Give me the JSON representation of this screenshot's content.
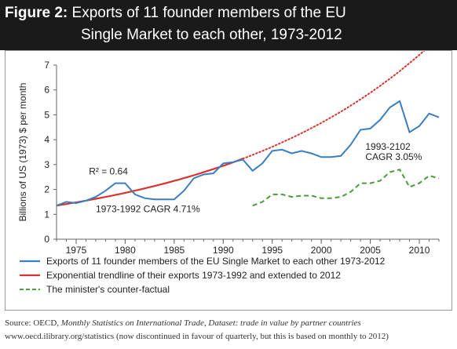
{
  "title": {
    "label": "Figure 2:",
    "line1": "Exports of 11 founder members of the EU",
    "line2": "Single Market to each other, 1973-2012"
  },
  "source": {
    "line1_prefix": "Source: OECD, ",
    "line1_italic": "Monthly Statistics on International Trade, Dataset: trade in value by partner countries",
    "line2": "www.oecd.ilibrary.org/statistics (now discontinued in favour of quarterly, but this is based on monthly to 2012)"
  },
  "chart_data": {
    "type": "line",
    "ylabel": "Billions of US (1973) $ per month",
    "xlabel": "",
    "xlim": [
      1973,
      2012
    ],
    "ylim": [
      0,
      7
    ],
    "x_ticks": [
      1975,
      1980,
      1985,
      1990,
      1995,
      2000,
      2005,
      2010
    ],
    "y_ticks": [
      0,
      1,
      2,
      3,
      4,
      5,
      6,
      7
    ],
    "grid": false,
    "legend_position": "bottom",
    "series": [
      {
        "name": "Exports of 11 founder members of the EU Single Market to each other 1973-2012",
        "color": "#3a7ec1",
        "style": "solid",
        "x": [
          1973,
          1974,
          1975,
          1976,
          1977,
          1978,
          1979,
          1980,
          1981,
          1982,
          1983,
          1984,
          1985,
          1986,
          1987,
          1988,
          1989,
          1990,
          1991,
          1992,
          1993,
          1994,
          1995,
          1996,
          1997,
          1998,
          1999,
          2000,
          2001,
          2002,
          2003,
          2004,
          2005,
          2006,
          2007,
          2008,
          2009,
          2010,
          2011,
          2012
        ],
        "y": [
          1.35,
          1.5,
          1.45,
          1.55,
          1.7,
          1.95,
          2.25,
          2.25,
          1.8,
          1.65,
          1.6,
          1.6,
          1.6,
          1.95,
          2.45,
          2.6,
          2.65,
          3.05,
          3.1,
          3.2,
          2.75,
          3.05,
          3.55,
          3.6,
          3.45,
          3.55,
          3.45,
          3.3,
          3.3,
          3.35,
          3.8,
          4.4,
          4.45,
          4.8,
          5.3,
          5.55,
          4.3,
          4.55,
          5.05,
          4.9
        ]
      },
      {
        "name": "Exponential trendline of their exports 1973-1992 and extended to 2012",
        "color": "#d9332f",
        "style": "solid-then-dotted",
        "x_solid": [
          1973,
          1992
        ],
        "x_dotted": [
          1992,
          2012
        ],
        "start_value": 1.35,
        "cagr_percent": 4.71
      },
      {
        "name": "The minister's counter-factual",
        "color": "#4a9b3c",
        "style": "dashed",
        "x": [
          1993,
          1994,
          1995,
          1996,
          1997,
          1998,
          1999,
          2000,
          2001,
          2002,
          2003,
          2004,
          2005,
          2006,
          2007,
          2008,
          2009,
          2010,
          2011,
          2012
        ],
        "y": [
          1.35,
          1.5,
          1.8,
          1.8,
          1.7,
          1.75,
          1.75,
          1.65,
          1.65,
          1.7,
          1.9,
          2.25,
          2.25,
          2.35,
          2.7,
          2.8,
          2.1,
          2.25,
          2.55,
          2.45
        ]
      }
    ],
    "annotations": [
      {
        "text": "R² = 0.64",
        "x": 1976.3,
        "y": 2.6
      },
      {
        "text": "1973-1992 CAGR 4.71%",
        "x": 1977,
        "y": 1.08
      },
      {
        "text": "1993-2102",
        "x": 2004.5,
        "y": 3.6
      },
      {
        "text": "CAGR 3.05%",
        "x": 2004.5,
        "y": 3.18
      }
    ]
  }
}
